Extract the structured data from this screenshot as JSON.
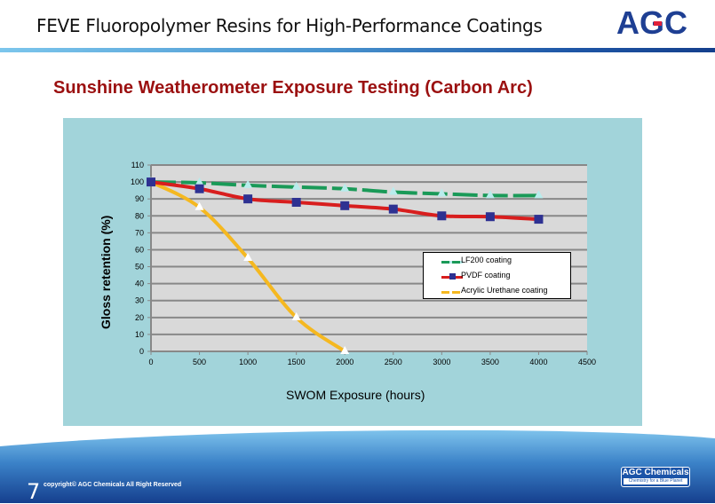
{
  "header": {
    "title": "FEVE Fluoropolymer Resins for High-Performance Coatings",
    "logo": "AGC",
    "logo_color": "#1e3f93",
    "logo_accent": "#e0203a"
  },
  "subtitle": "Sunshine Weatherometer Exposure Testing (Carbon Arc)",
  "footer": {
    "page_number": "7",
    "copyright": "copyright© AGC Chemicals  All Right Reserved",
    "logo_main": "AGC Chemicals",
    "logo_tagline": "Chemistry for a Blue Planet"
  },
  "chart_data": {
    "type": "line",
    "title": "Sunshine Weatherometer Exposure Testing (Carbon Arc)",
    "xlabel": "SWOM  Exposure (hours)",
    "ylabel": "Gloss retention (%)",
    "xlim": [
      0,
      4500
    ],
    "ylim": [
      0,
      110
    ],
    "x_ticks": [
      "0",
      "500",
      "1000",
      "1500",
      "2000",
      "2500",
      "3000",
      "3500",
      "4000",
      "4500"
    ],
    "y_ticks": [
      "0",
      "10",
      "20",
      "30",
      "40",
      "50",
      "60",
      "70",
      "80",
      "90",
      "100",
      "110"
    ],
    "grid": "horizontal",
    "legend_position": "inside-right",
    "plot_background": "#d9d9d9",
    "panel_background": "#a2d4da",
    "series": [
      {
        "name": "LF200 coating",
        "color": "#1a9a58",
        "marker": "triangle",
        "marker_color": "#b8ecec",
        "dash": "dashed",
        "x": [
          0,
          500,
          1000,
          1500,
          2000,
          2500,
          3000,
          3500,
          4000
        ],
        "values": [
          100,
          99.5,
          98,
          97,
          96,
          94,
          93,
          92,
          92
        ]
      },
      {
        "name": "PVDF coating",
        "color": "#d81e1e",
        "marker": "square",
        "marker_color": "#2e3192",
        "dash": "solid",
        "x": [
          0,
          500,
          1000,
          1500,
          2000,
          2500,
          3000,
          3500,
          4000
        ],
        "values": [
          100,
          96,
          90,
          88,
          86,
          84,
          80,
          79.5,
          78
        ]
      },
      {
        "name": "Acrylic Urethane coating",
        "color": "#f5b820",
        "marker": "triangle",
        "marker_color": "#ffffff",
        "dash": "solid",
        "x": [
          0,
          500,
          1000,
          1500,
          2000
        ],
        "values": [
          100,
          85,
          55,
          20,
          0
        ]
      }
    ]
  }
}
